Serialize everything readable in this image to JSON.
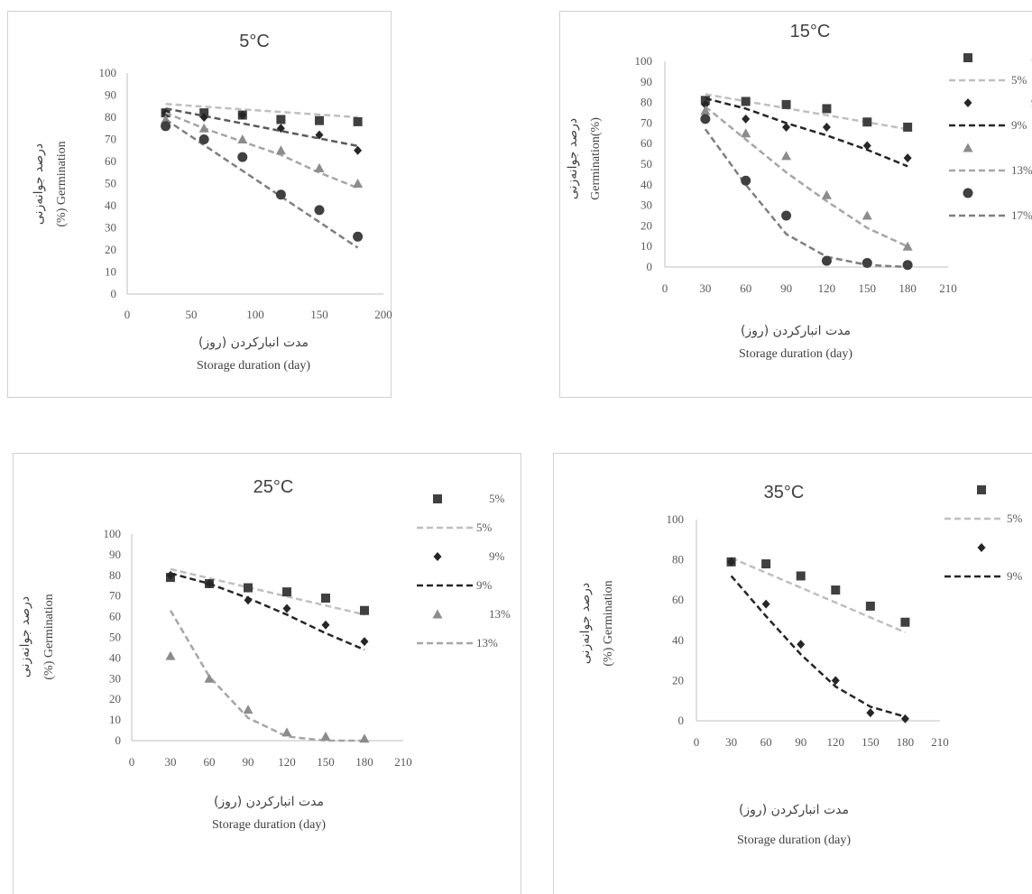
{
  "chart_data": [
    {
      "type": "scatter",
      "title": "5°C",
      "xlabel_fa": "مدت انبارکردن (روز)",
      "xlabel_en": "Storage duration (day)",
      "ylabel_fa": "درصد جوانه‌زنی",
      "ylabel_en": "(%) Germination",
      "xlim": [
        0,
        200
      ],
      "ylim": [
        0,
        100
      ],
      "xticks": [
        0,
        50,
        100,
        150,
        200
      ],
      "yticks": [
        0,
        10,
        20,
        30,
        40,
        50,
        60,
        70,
        80,
        90,
        100
      ],
      "grid": false,
      "legend": "right",
      "series": [
        {
          "name": "5%",
          "marker": "square",
          "color": "#404040",
          "x": [
            30,
            60,
            90,
            120,
            150,
            180
          ],
          "y": [
            82,
            82,
            81,
            79,
            78.5,
            78
          ],
          "trend_x": [
            30,
            180
          ],
          "trend_y": [
            86,
            80
          ],
          "trend_color": "#bfbfbf",
          "trend_name": "5%"
        },
        {
          "name": "9%",
          "marker": "diamond",
          "color": "#262626",
          "x": [
            30,
            60,
            90,
            120,
            150,
            180
          ],
          "y": [
            82,
            80,
            81,
            75,
            72,
            65
          ],
          "trend_x": [
            30,
            180
          ],
          "trend_y": [
            84,
            67
          ],
          "trend_color": "#595959",
          "trend_name": "9%"
        },
        {
          "name": "13%",
          "marker": "triangle",
          "color": "#8c8c8c",
          "x": [
            30,
            60,
            90,
            120,
            150,
            180
          ],
          "y": [
            79,
            75,
            70,
            65,
            57,
            50
          ],
          "trend_x": [
            30,
            60,
            90,
            120,
            150,
            180
          ],
          "trend_y": [
            82,
            75,
            69,
            63,
            55,
            48
          ],
          "trend_color": "#a6a6a6",
          "trend_name": "13%"
        },
        {
          "name": "17%",
          "marker": "circle",
          "color": "#404040",
          "x": [
            30,
            60,
            90,
            120,
            150,
            180
          ],
          "y": [
            76,
            70,
            62,
            45,
            38,
            26
          ],
          "trend_x": [
            30,
            180
          ],
          "trend_y": [
            79,
            21
          ],
          "trend_color": "#7f7f7f",
          "trend_name": "17%"
        }
      ]
    },
    {
      "type": "scatter",
      "title": "15°C",
      "xlabel_fa": "مدت انبارکردن (روز)",
      "xlabel_en": "Storage duration (day)",
      "ylabel_fa": "درصد جوانه‌زنی",
      "ylabel_en": "Germination(%)",
      "xlim": [
        0,
        210
      ],
      "ylim": [
        0,
        100
      ],
      "xticks": [
        0,
        30,
        60,
        90,
        120,
        150,
        180,
        210
      ],
      "yticks": [
        0,
        10,
        20,
        30,
        40,
        50,
        60,
        70,
        80,
        90,
        100
      ],
      "grid": false,
      "legend": "right",
      "series": [
        {
          "name": "5%",
          "marker": "square",
          "color": "#404040",
          "x": [
            30,
            60,
            90,
            120,
            150,
            180
          ],
          "y": [
            81,
            80.5,
            79,
            77,
            70.5,
            68
          ],
          "trend_x": [
            30,
            180
          ],
          "trend_y": [
            84,
            67
          ],
          "trend_color": "#bfbfbf",
          "trend_name": "5%"
        },
        {
          "name": "9%",
          "marker": "diamond",
          "color": "#262626",
          "x": [
            30,
            60,
            90,
            120,
            150,
            180
          ],
          "y": [
            79,
            72,
            68,
            68,
            59,
            53
          ],
          "trend_x": [
            30,
            60,
            90,
            120,
            150,
            180
          ],
          "trend_y": [
            82,
            77,
            70,
            64,
            57,
            49
          ],
          "trend_color": "#262626",
          "trend_name": "9%"
        },
        {
          "name": "13%",
          "marker": "triangle",
          "color": "#8c8c8c",
          "x": [
            30,
            60,
            90,
            120,
            150,
            180
          ],
          "y": [
            76,
            65,
            54,
            35,
            25,
            10
          ],
          "trend_x": [
            30,
            60,
            90,
            120,
            150,
            180
          ],
          "trend_y": [
            78,
            62,
            46,
            32,
            19,
            10
          ],
          "trend_color": "#a6a6a6",
          "trend_name": "13%"
        },
        {
          "name": "17%",
          "marker": "circle",
          "color": "#404040",
          "x": [
            30,
            60,
            90,
            120,
            150,
            180
          ],
          "y": [
            72,
            42,
            25,
            3,
            2,
            1
          ],
          "trend_x": [
            30,
            60,
            90,
            120,
            150,
            180
          ],
          "trend_y": [
            67,
            40,
            16,
            5,
            1,
            0
          ],
          "trend_color": "#7f7f7f",
          "trend_name": "17%"
        }
      ]
    },
    {
      "type": "scatter",
      "title": "25°C",
      "xlabel_fa": "مدت انبارکردن (روز)",
      "xlabel_en": "Storage duration (day)",
      "ylabel_fa": "درصد جوانه‌زنی",
      "ylabel_en": "(%) Germination",
      "xlim": [
        0,
        210
      ],
      "ylim": [
        0,
        100
      ],
      "xticks": [
        0,
        30,
        60,
        90,
        120,
        150,
        180,
        210
      ],
      "yticks": [
        0,
        10,
        20,
        30,
        40,
        50,
        60,
        70,
        80,
        90,
        100
      ],
      "grid": false,
      "legend": "right",
      "series": [
        {
          "name": "5%",
          "marker": "square",
          "color": "#404040",
          "x": [
            30,
            60,
            90,
            120,
            150,
            180
          ],
          "y": [
            79,
            76,
            74,
            72,
            69,
            63
          ],
          "trend_x": [
            30,
            180
          ],
          "trend_y": [
            83,
            61
          ],
          "trend_color": "#bfbfbf",
          "trend_name": "5%"
        },
        {
          "name": "9%",
          "marker": "diamond",
          "color": "#262626",
          "x": [
            30,
            60,
            90,
            120,
            150,
            180
          ],
          "y": [
            80,
            76,
            68,
            64,
            56,
            48
          ],
          "trend_x": [
            30,
            60,
            90,
            120,
            150,
            180
          ],
          "trend_y": [
            81,
            76,
            69,
            61,
            52,
            44
          ],
          "trend_color": "#262626",
          "trend_name": "9%"
        },
        {
          "name": "13%",
          "marker": "triangle",
          "color": "#8c8c8c",
          "x": [
            30,
            60,
            90,
            120,
            150,
            180
          ],
          "y": [
            41,
            30,
            15,
            4,
            2,
            1
          ],
          "trend_x": [
            30,
            60,
            90,
            120,
            150,
            180
          ],
          "trend_y": [
            63,
            31,
            11,
            2,
            0,
            0
          ],
          "trend_color": "#a6a6a6",
          "trend_name": "13%"
        }
      ]
    },
    {
      "type": "scatter",
      "title": "35°C",
      "xlabel_fa": "مدت انبارکردن (روز)",
      "xlabel_en": "Storage duration (day)",
      "ylabel_fa": "درصد جوانه‌زنی",
      "ylabel_en": "(%) Germination",
      "xlim": [
        0,
        210
      ],
      "ylim": [
        0,
        100
      ],
      "xticks": [
        0,
        30,
        60,
        90,
        120,
        150,
        180,
        210
      ],
      "yticks": [
        0,
        20,
        40,
        60,
        80,
        100
      ],
      "grid": false,
      "legend": "right",
      "series": [
        {
          "name": "5%",
          "marker": "square",
          "color": "#404040",
          "x": [
            30,
            60,
            90,
            120,
            150,
            180
          ],
          "y": [
            79,
            78,
            72,
            65,
            57,
            49
          ],
          "trend_x": [
            30,
            180
          ],
          "trend_y": [
            81,
            44
          ],
          "trend_color": "#bfbfbf",
          "trend_name": "5%"
        },
        {
          "name": "9%",
          "marker": "diamond",
          "color": "#262626",
          "x": [
            30,
            60,
            90,
            120,
            150,
            180
          ],
          "y": [
            79,
            58,
            38,
            20,
            4,
            1
          ],
          "trend_x": [
            30,
            60,
            90,
            120,
            150,
            180
          ],
          "trend_y": [
            72,
            52,
            33,
            17,
            7,
            2
          ],
          "trend_color": "#262626",
          "trend_name": "9%"
        }
      ]
    }
  ]
}
